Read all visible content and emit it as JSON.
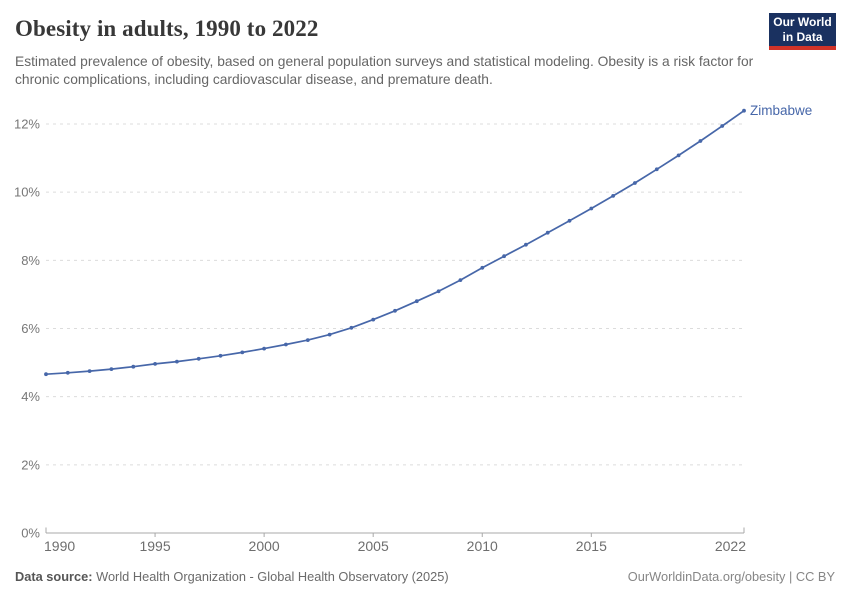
{
  "header": {
    "subtitle": "Estimated prevalence of obesity, based on general population surveys and statistical modeling. Obesity is a risk factor for chronic complications, including cardiovascular disease, and premature death.",
    "logo": {
      "line1": "Our World",
      "line2": "in Data"
    }
  },
  "chart_data": {
    "type": "line",
    "title": "Obesity in adults, 1990 to 2022",
    "xlabel": "",
    "ylabel": "",
    "ylim": [
      0,
      12
    ],
    "yticks": [
      0,
      2,
      4,
      6,
      8,
      10,
      12
    ],
    "ytick_suffix": "%",
    "xticks": [
      1990,
      1995,
      2000,
      2005,
      2010,
      2015,
      2022
    ],
    "grid": "horizontal-dashed",
    "legend_position": "end-of-line-label",
    "x": [
      1990,
      1991,
      1992,
      1993,
      1994,
      1995,
      1996,
      1997,
      1998,
      1999,
      2000,
      2001,
      2002,
      2003,
      2004,
      2005,
      2006,
      2007,
      2008,
      2009,
      2010,
      2011,
      2012,
      2013,
      2014,
      2015,
      2016,
      2017,
      2018,
      2019,
      2020,
      2021,
      2022
    ],
    "series": [
      {
        "name": "Zimbabwe",
        "color": "#4767a9",
        "values": [
          4.66,
          4.7,
          4.75,
          4.81,
          4.88,
          4.96,
          5.03,
          5.11,
          5.2,
          5.3,
          5.41,
          5.53,
          5.66,
          5.82,
          6.02,
          6.26,
          6.52,
          6.8,
          7.09,
          7.42,
          7.78,
          8.12,
          8.46,
          8.81,
          9.16,
          9.52,
          9.89,
          10.27,
          10.67,
          11.08,
          11.5,
          11.94,
          12.39
        ]
      }
    ]
  },
  "colors": {
    "logo_bg": "#1a3160",
    "logo_accent": "#d13328",
    "grid": "#dcdcdc",
    "axis": "#a8a8a8",
    "tick_text": "#6e6e6e",
    "ylabel_text": "#777777"
  },
  "footer": {
    "source_label": "Data source:",
    "source_text": "World Health Organization - Global Health Observatory (2025)",
    "right_text": "OurWorldinData.org/obesity | CC BY"
  }
}
